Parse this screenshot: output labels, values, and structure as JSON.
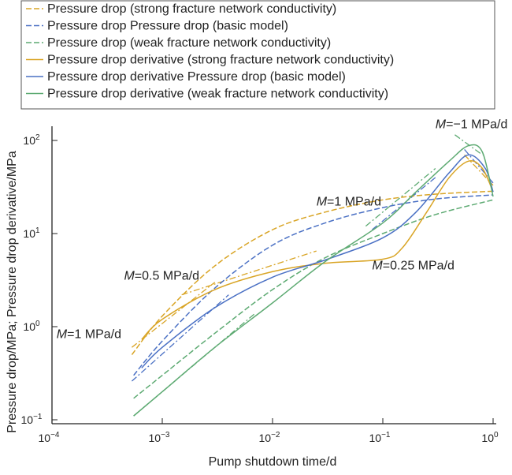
{
  "chart_data": {
    "type": "line",
    "xlabel": "Pump shutdown time/d",
    "ylabel": "Pressure drop/MPa; Pressure drop derivative/MPa",
    "x_scale": "log",
    "y_scale": "log",
    "xlim": [
      0.0001,
      1
    ],
    "ylim": [
      0.1,
      100
    ],
    "x_ticks": [
      {
        "base": "10",
        "exp": "−4"
      },
      {
        "base": "10",
        "exp": "−3"
      },
      {
        "base": "10",
        "exp": "−2"
      },
      {
        "base": "10",
        "exp": "−1"
      },
      {
        "base": "10",
        "exp": "0"
      }
    ],
    "y_ticks": [
      {
        "base": "10",
        "exp": "−1"
      },
      {
        "base": "10",
        "exp": "0"
      },
      {
        "base": "10",
        "exp": "1"
      },
      {
        "base": "10",
        "exp": "2"
      }
    ],
    "grid": false,
    "legend_position": "top",
    "series": [
      {
        "name": "Pressure drop (strong fracture network conductivity)",
        "color": "#D9A526",
        "style": "dashed",
        "x": [
          0.00053,
          0.001,
          0.003,
          0.01,
          0.03,
          0.1,
          0.3,
          1
        ],
        "y": [
          0.5,
          1.3,
          4.5,
          11,
          17,
          23,
          26.5,
          28.5
        ]
      },
      {
        "name": "Pressure drop Pressure drop (basic model)",
        "color": "#4A70C4",
        "style": "dashed",
        "x": [
          0.00055,
          0.001,
          0.003,
          0.01,
          0.03,
          0.1,
          0.3,
          1
        ],
        "y": [
          0.3,
          0.7,
          2.6,
          7.5,
          13,
          19,
          23.5,
          26
        ]
      },
      {
        "name": "Pressure drop (weak fracture network conductivity)",
        "color": "#5DAA72",
        "style": "dashed",
        "x": [
          0.00055,
          0.001,
          0.003,
          0.01,
          0.03,
          0.1,
          0.3,
          1
        ],
        "y": [
          0.17,
          0.3,
          0.85,
          2.5,
          5.5,
          10,
          16,
          23
        ]
      },
      {
        "name": "Pressure drop derivative (strong fracture network conductivity)",
        "color": "#D9A526",
        "style": "solid",
        "x": [
          0.00065,
          0.001,
          0.003,
          0.01,
          0.03,
          0.1,
          0.15,
          0.25,
          0.4,
          0.6,
          0.8,
          1
        ],
        "y": [
          0.73,
          1.2,
          2.5,
          3.9,
          4.8,
          5.3,
          7,
          17,
          40,
          60,
          50,
          28
        ]
      },
      {
        "name": "Pressure drop derivative Pressure drop (basic model)",
        "color": "#4A70C4",
        "style": "solid",
        "x": [
          0.00065,
          0.001,
          0.003,
          0.01,
          0.03,
          0.1,
          0.2,
          0.4,
          0.6,
          0.85,
          1
        ],
        "y": [
          0.36,
          0.6,
          1.6,
          3.4,
          5.2,
          9,
          17,
          45,
          70,
          50,
          28
        ]
      },
      {
        "name": "Pressure drop derivative (weak fracture network conductivity)",
        "color": "#5DAA72",
        "style": "solid",
        "x": [
          0.00055,
          0.001,
          0.003,
          0.01,
          0.03,
          0.1,
          0.2,
          0.4,
          0.6,
          0.8,
          1
        ],
        "y": [
          0.11,
          0.2,
          0.6,
          1.8,
          5,
          13,
          28,
          60,
          88,
          75,
          25
        ]
      }
    ],
    "reference_lines": [
      {
        "color": "#D9A526",
        "x": [
          0.00053,
          0.003
        ],
        "y": [
          0.6,
          3
        ]
      },
      {
        "color": "#D9A526",
        "x": [
          0.0015,
          0.025
        ],
        "y": [
          2.2,
          6.5
        ]
      },
      {
        "color": "#4A70C4",
        "x": [
          0.00053,
          0.004
        ],
        "y": [
          0.26,
          2.2
        ]
      },
      {
        "color": "#5DAA72",
        "x": [
          0.00055,
          0.007
        ],
        "y": [
          0.11,
          1.4
        ]
      },
      {
        "color": "#5DAA72",
        "x": [
          0.07,
          0.3
        ],
        "y": [
          12,
          50
        ]
      },
      {
        "color": "#4A70C4",
        "x": [
          0.08,
          0.3
        ],
        "y": [
          11,
          40
        ]
      },
      {
        "color": "#5DAA72",
        "x": [
          0.45,
          0.8
        ],
        "y": [
          115,
          70
        ]
      },
      {
        "color": "#4A70C4",
        "x": [
          0.55,
          1
        ],
        "y": [
          80,
          35
        ]
      },
      {
        "color": "#D9A526",
        "x": [
          0.55,
          1
        ],
        "y": [
          70,
          33
        ]
      }
    ],
    "annotations": [
      {
        "label_italic": "M",
        "label": "=1 MPa/d",
        "x": 0.00011,
        "y": 0.75
      },
      {
        "label_italic": "M",
        "label": "=0.5 MPa/d",
        "x": 0.00045,
        "y": 3.2
      },
      {
        "label_italic": "M",
        "label": "=1 MPa/d",
        "x": 0.025,
        "y": 20
      },
      {
        "label_italic": "M",
        "label": "=0.25 MPa/d",
        "x": 0.08,
        "y": 4.1
      },
      {
        "label_italic": "M",
        "label": "=−1 MPa/d",
        "x": 0.3,
        "y": 135
      }
    ]
  }
}
